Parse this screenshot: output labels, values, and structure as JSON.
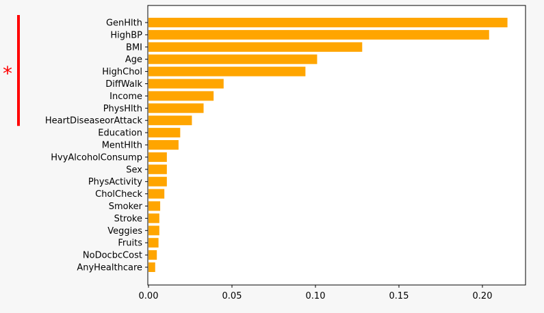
{
  "chart_data": {
    "type": "bar",
    "orientation": "horizontal",
    "categories": [
      "GenHlth",
      "HighBP",
      "BMI",
      "Age",
      "HighChol",
      "DiffWalk",
      "Income",
      "PhysHlth",
      "HeartDiseaseorAttack",
      "Education",
      "MentHlth",
      "HvyAlcoholConsump",
      "Sex",
      "PhysActivity",
      "CholCheck",
      "Smoker",
      "Stroke",
      "Veggies",
      "Fruits",
      "NoDocbcCost",
      "AnyHealthcare"
    ],
    "values": [
      0.215,
      0.204,
      0.128,
      0.101,
      0.094,
      0.045,
      0.039,
      0.033,
      0.026,
      0.019,
      0.018,
      0.011,
      0.011,
      0.011,
      0.0095,
      0.007,
      0.0065,
      0.0065,
      0.006,
      0.005,
      0.004
    ],
    "xlim": [
      0.0,
      0.226
    ],
    "xticks": [
      "0.00",
      "0.05",
      "0.10",
      "0.15",
      "0.20"
    ],
    "xtick_values": [
      0.0,
      0.05,
      0.1,
      0.15,
      0.2
    ],
    "bar_color": "#ffa500",
    "grid": false,
    "annotation": {
      "marker": "*",
      "color": "#ff0000",
      "spans_categories": [
        "GenHlth",
        "HeartDiseaseorAttack"
      ]
    }
  }
}
